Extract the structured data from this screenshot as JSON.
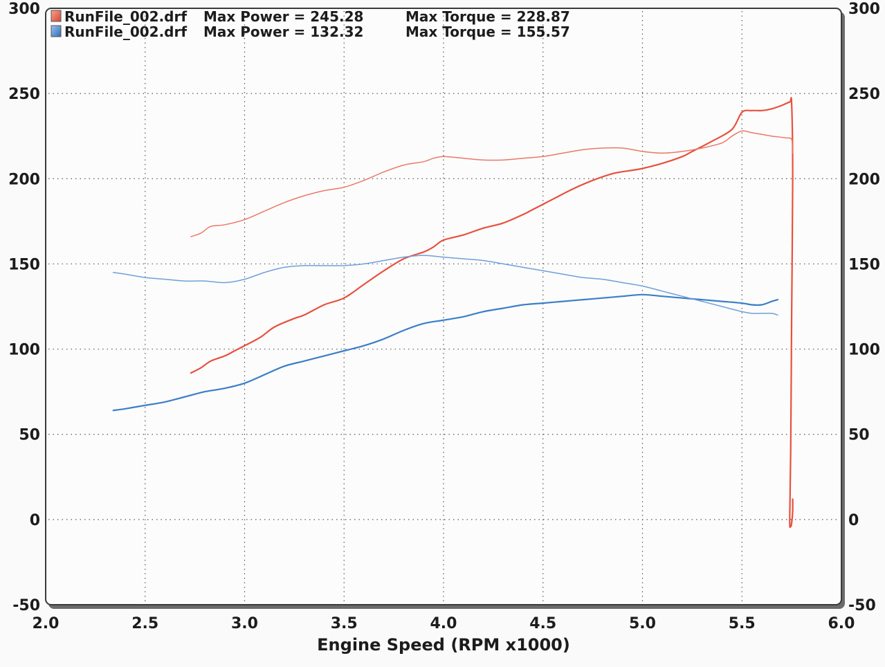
{
  "chart_data": {
    "type": "line",
    "xlabel": "Engine Speed (RPM x1000)",
    "ylabel": "",
    "xlim": [
      2.0,
      6.0
    ],
    "ylim": [
      -50,
      300
    ],
    "x_ticks": [
      "2.0",
      "2.5",
      "3.0",
      "3.5",
      "4.0",
      "4.5",
      "5.0",
      "5.5",
      "6.0"
    ],
    "y_ticks": [
      "-50",
      "0",
      "50",
      "100",
      "150",
      "200",
      "250",
      "300"
    ],
    "grid": true,
    "legend_position": "top-left",
    "legend": [
      {
        "file": "RunFile_002.drf",
        "power_text": "Max Power = 245.28",
        "torque_text": "Max Torque = 228.87",
        "color": "#e8503c"
      },
      {
        "file": "RunFile_002.drf",
        "power_text": "Max Power = 132.32",
        "torque_text": "Max Torque = 155.57",
        "color": "#3a7ec8"
      }
    ],
    "series": [
      {
        "run": 1,
        "kind": "power",
        "color": "#e8503c",
        "width": 2.2,
        "points": [
          [
            2.73,
            86
          ],
          [
            2.78,
            89
          ],
          [
            2.83,
            93
          ],
          [
            2.9,
            96
          ],
          [
            2.95,
            99
          ],
          [
            3.0,
            102
          ],
          [
            3.08,
            107
          ],
          [
            3.15,
            113
          ],
          [
            3.25,
            118
          ],
          [
            3.3,
            120
          ],
          [
            3.4,
            126
          ],
          [
            3.5,
            130
          ],
          [
            3.6,
            138
          ],
          [
            3.7,
            146
          ],
          [
            3.8,
            153
          ],
          [
            3.9,
            157
          ],
          [
            3.95,
            160
          ],
          [
            4.0,
            164
          ],
          [
            4.1,
            167
          ],
          [
            4.2,
            171
          ],
          [
            4.3,
            174
          ],
          [
            4.4,
            179
          ],
          [
            4.45,
            182
          ],
          [
            4.55,
            188
          ],
          [
            4.65,
            194
          ],
          [
            4.75,
            199
          ],
          [
            4.85,
            203
          ],
          [
            4.95,
            205
          ],
          [
            5.0,
            206
          ],
          [
            5.1,
            209
          ],
          [
            5.2,
            213
          ],
          [
            5.25,
            216
          ],
          [
            5.35,
            222
          ],
          [
            5.45,
            229
          ],
          [
            5.5,
            239
          ],
          [
            5.55,
            240
          ],
          [
            5.6,
            240
          ],
          [
            5.65,
            241
          ],
          [
            5.7,
            243
          ],
          [
            5.74,
            245
          ],
          [
            5.75,
            244
          ],
          [
            5.755,
            200
          ],
          [
            5.75,
            120
          ],
          [
            5.745,
            40
          ],
          [
            5.74,
            0
          ],
          [
            5.745,
            -4
          ],
          [
            5.75,
            -2
          ],
          [
            5.755,
            5
          ],
          [
            5.755,
            12
          ]
        ]
      },
      {
        "run": 1,
        "kind": "torque",
        "color": "#ec7866",
        "width": 1.5,
        "points": [
          [
            2.73,
            166
          ],
          [
            2.78,
            168
          ],
          [
            2.83,
            172
          ],
          [
            2.9,
            173
          ],
          [
            3.0,
            176
          ],
          [
            3.1,
            181
          ],
          [
            3.2,
            186
          ],
          [
            3.3,
            190
          ],
          [
            3.4,
            193
          ],
          [
            3.5,
            195
          ],
          [
            3.6,
            199
          ],
          [
            3.7,
            204
          ],
          [
            3.8,
            208
          ],
          [
            3.9,
            210
          ],
          [
            3.95,
            212
          ],
          [
            4.0,
            213
          ],
          [
            4.1,
            212
          ],
          [
            4.2,
            211
          ],
          [
            4.3,
            211
          ],
          [
            4.4,
            212
          ],
          [
            4.5,
            213
          ],
          [
            4.6,
            215
          ],
          [
            4.7,
            217
          ],
          [
            4.8,
            218
          ],
          [
            4.9,
            218
          ],
          [
            5.0,
            216
          ],
          [
            5.1,
            215
          ],
          [
            5.2,
            216
          ],
          [
            5.3,
            218
          ],
          [
            5.4,
            221
          ],
          [
            5.45,
            225
          ],
          [
            5.5,
            228
          ],
          [
            5.55,
            227
          ],
          [
            5.6,
            226
          ],
          [
            5.65,
            225
          ],
          [
            5.72,
            224
          ],
          [
            5.75,
            223
          ],
          [
            5.755,
            215
          ]
        ]
      },
      {
        "run": 2,
        "kind": "power",
        "color": "#3a7ec8",
        "width": 2.2,
        "points": [
          [
            2.34,
            64
          ],
          [
            2.4,
            65
          ],
          [
            2.5,
            67
          ],
          [
            2.6,
            69
          ],
          [
            2.7,
            72
          ],
          [
            2.8,
            75
          ],
          [
            2.9,
            77
          ],
          [
            3.0,
            80
          ],
          [
            3.1,
            85
          ],
          [
            3.2,
            90
          ],
          [
            3.3,
            93
          ],
          [
            3.4,
            96
          ],
          [
            3.5,
            99
          ],
          [
            3.6,
            102
          ],
          [
            3.7,
            106
          ],
          [
            3.8,
            111
          ],
          [
            3.9,
            115
          ],
          [
            4.0,
            117
          ],
          [
            4.1,
            119
          ],
          [
            4.2,
            122
          ],
          [
            4.3,
            124
          ],
          [
            4.4,
            126
          ],
          [
            4.5,
            127
          ],
          [
            4.6,
            128
          ],
          [
            4.7,
            129
          ],
          [
            4.8,
            130
          ],
          [
            4.9,
            131
          ],
          [
            5.0,
            132
          ],
          [
            5.1,
            131
          ],
          [
            5.2,
            130
          ],
          [
            5.3,
            129
          ],
          [
            5.4,
            128
          ],
          [
            5.5,
            127
          ],
          [
            5.55,
            126
          ],
          [
            5.6,
            126
          ],
          [
            5.65,
            128
          ],
          [
            5.68,
            129
          ]
        ]
      },
      {
        "run": 2,
        "kind": "torque",
        "color": "#6e9fdc",
        "width": 1.5,
        "points": [
          [
            2.34,
            145
          ],
          [
            2.4,
            144
          ],
          [
            2.5,
            142
          ],
          [
            2.6,
            141
          ],
          [
            2.7,
            140
          ],
          [
            2.8,
            140
          ],
          [
            2.9,
            139
          ],
          [
            3.0,
            141
          ],
          [
            3.1,
            145
          ],
          [
            3.2,
            148
          ],
          [
            3.3,
            149
          ],
          [
            3.4,
            149
          ],
          [
            3.5,
            149
          ],
          [
            3.6,
            150
          ],
          [
            3.7,
            152
          ],
          [
            3.8,
            154
          ],
          [
            3.9,
            155
          ],
          [
            4.0,
            154
          ],
          [
            4.1,
            153
          ],
          [
            4.2,
            152
          ],
          [
            4.3,
            150
          ],
          [
            4.4,
            148
          ],
          [
            4.5,
            146
          ],
          [
            4.6,
            144
          ],
          [
            4.7,
            142
          ],
          [
            4.8,
            141
          ],
          [
            4.9,
            139
          ],
          [
            5.0,
            137
          ],
          [
            5.1,
            134
          ],
          [
            5.2,
            131
          ],
          [
            5.3,
            128
          ],
          [
            5.4,
            125
          ],
          [
            5.5,
            122
          ],
          [
            5.55,
            121
          ],
          [
            5.6,
            121
          ],
          [
            5.65,
            121
          ],
          [
            5.68,
            120
          ]
        ]
      }
    ]
  }
}
